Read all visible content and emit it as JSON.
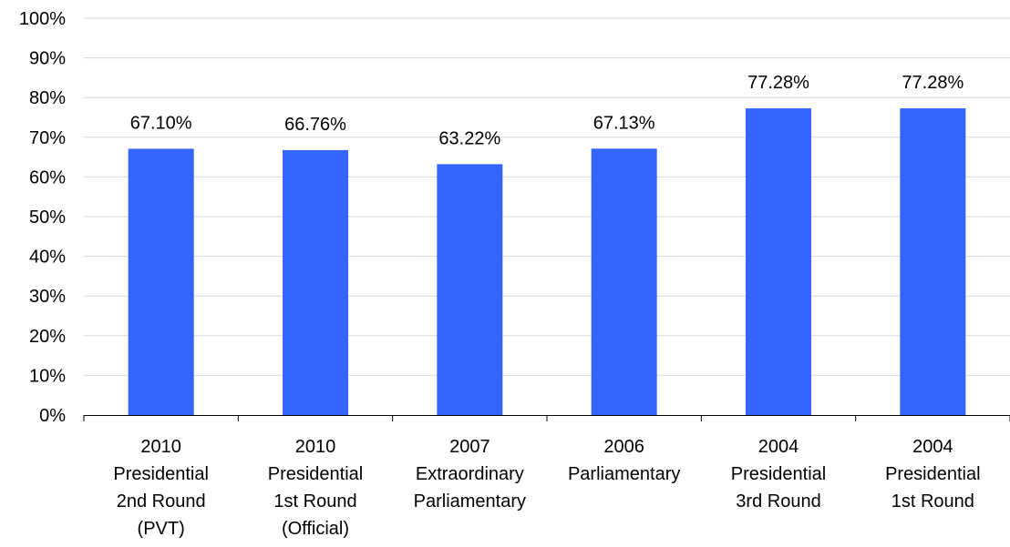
{
  "chart_data": {
    "type": "bar",
    "categories": [
      [
        "2010",
        "Presidential",
        "2nd Round",
        "(PVT)"
      ],
      [
        "2010",
        "Presidential",
        "1st Round",
        "(Official)"
      ],
      [
        "2007",
        "Extraordinary",
        "Parliamentary"
      ],
      [
        "2006",
        "Parliamentary"
      ],
      [
        "2004",
        "Presidential",
        "3rd Round"
      ],
      [
        "2004",
        "Presidential",
        "1st Round"
      ]
    ],
    "values": [
      67.1,
      66.76,
      63.22,
      67.13,
      77.28,
      77.28
    ],
    "data_labels": [
      "67.10%",
      "66.76%",
      "63.22%",
      "67.13%",
      "77.28%",
      "77.28%"
    ],
    "y_ticks": [
      "0%",
      "10%",
      "20%",
      "30%",
      "40%",
      "50%",
      "60%",
      "70%",
      "80%",
      "90%",
      "100%"
    ],
    "ylim": [
      0,
      100
    ],
    "grid": true,
    "legend": "none",
    "title": "",
    "xlabel": "",
    "ylabel": "",
    "colors": {
      "bar": "#3366FF",
      "grid": "#D9D9D9",
      "axis": "#000000"
    }
  }
}
